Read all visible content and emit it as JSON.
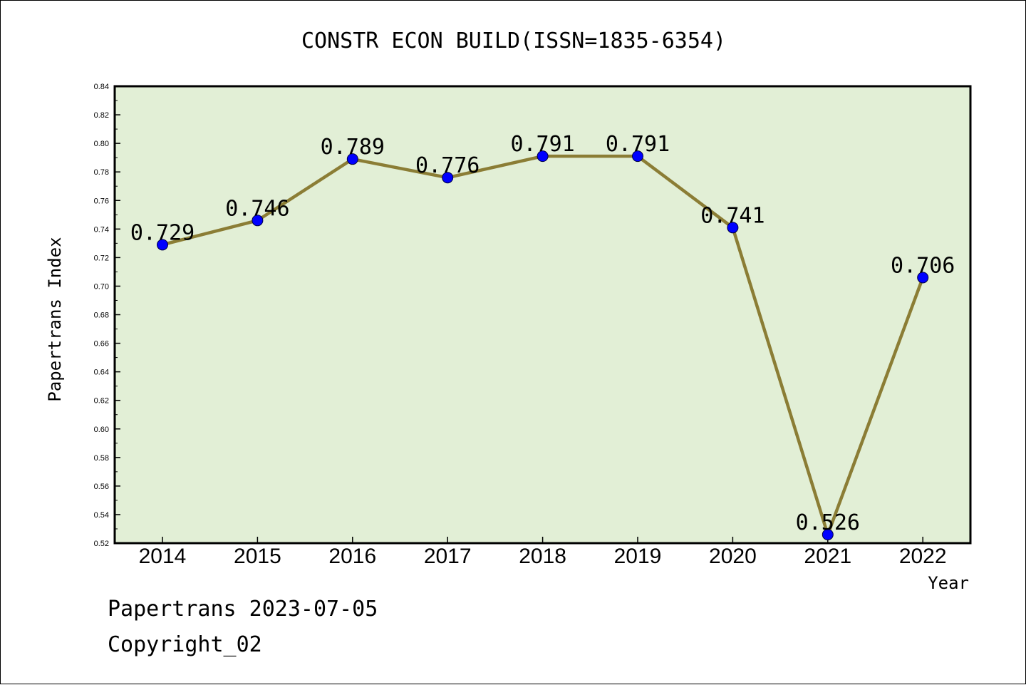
{
  "chart_data": {
    "type": "line",
    "title": "CONSTR ECON BUILD(ISSN=1835-6354)",
    "xlabel": "Year",
    "ylabel": "Papertrans Index",
    "categories": [
      "2014",
      "2015",
      "2016",
      "2017",
      "2018",
      "2019",
      "2020",
      "2021",
      "2022"
    ],
    "values": [
      0.729,
      0.746,
      0.789,
      0.776,
      0.791,
      0.791,
      0.741,
      0.526,
      0.706
    ],
    "data_labels": [
      "0.729",
      "0.746",
      "0.789",
      "0.776",
      "0.791",
      "0.791",
      "0.741",
      "0.526",
      "0.706"
    ],
    "ylim": [
      0.52,
      0.84
    ],
    "yticks": [
      "0.52",
      "0.54",
      "0.56",
      "0.58",
      "0.60",
      "0.62",
      "0.64",
      "0.66",
      "0.68",
      "0.70",
      "0.72",
      "0.74",
      "0.76",
      "0.78",
      "0.80",
      "0.82",
      "0.84"
    ],
    "grid": false,
    "colors": {
      "plot_background": "#e2efd6",
      "line": "#8b7d35",
      "marker": "#0000ff"
    }
  },
  "footer": {
    "line1": "Papertrans 2023-07-05",
    "line2": "Copyright_02"
  }
}
